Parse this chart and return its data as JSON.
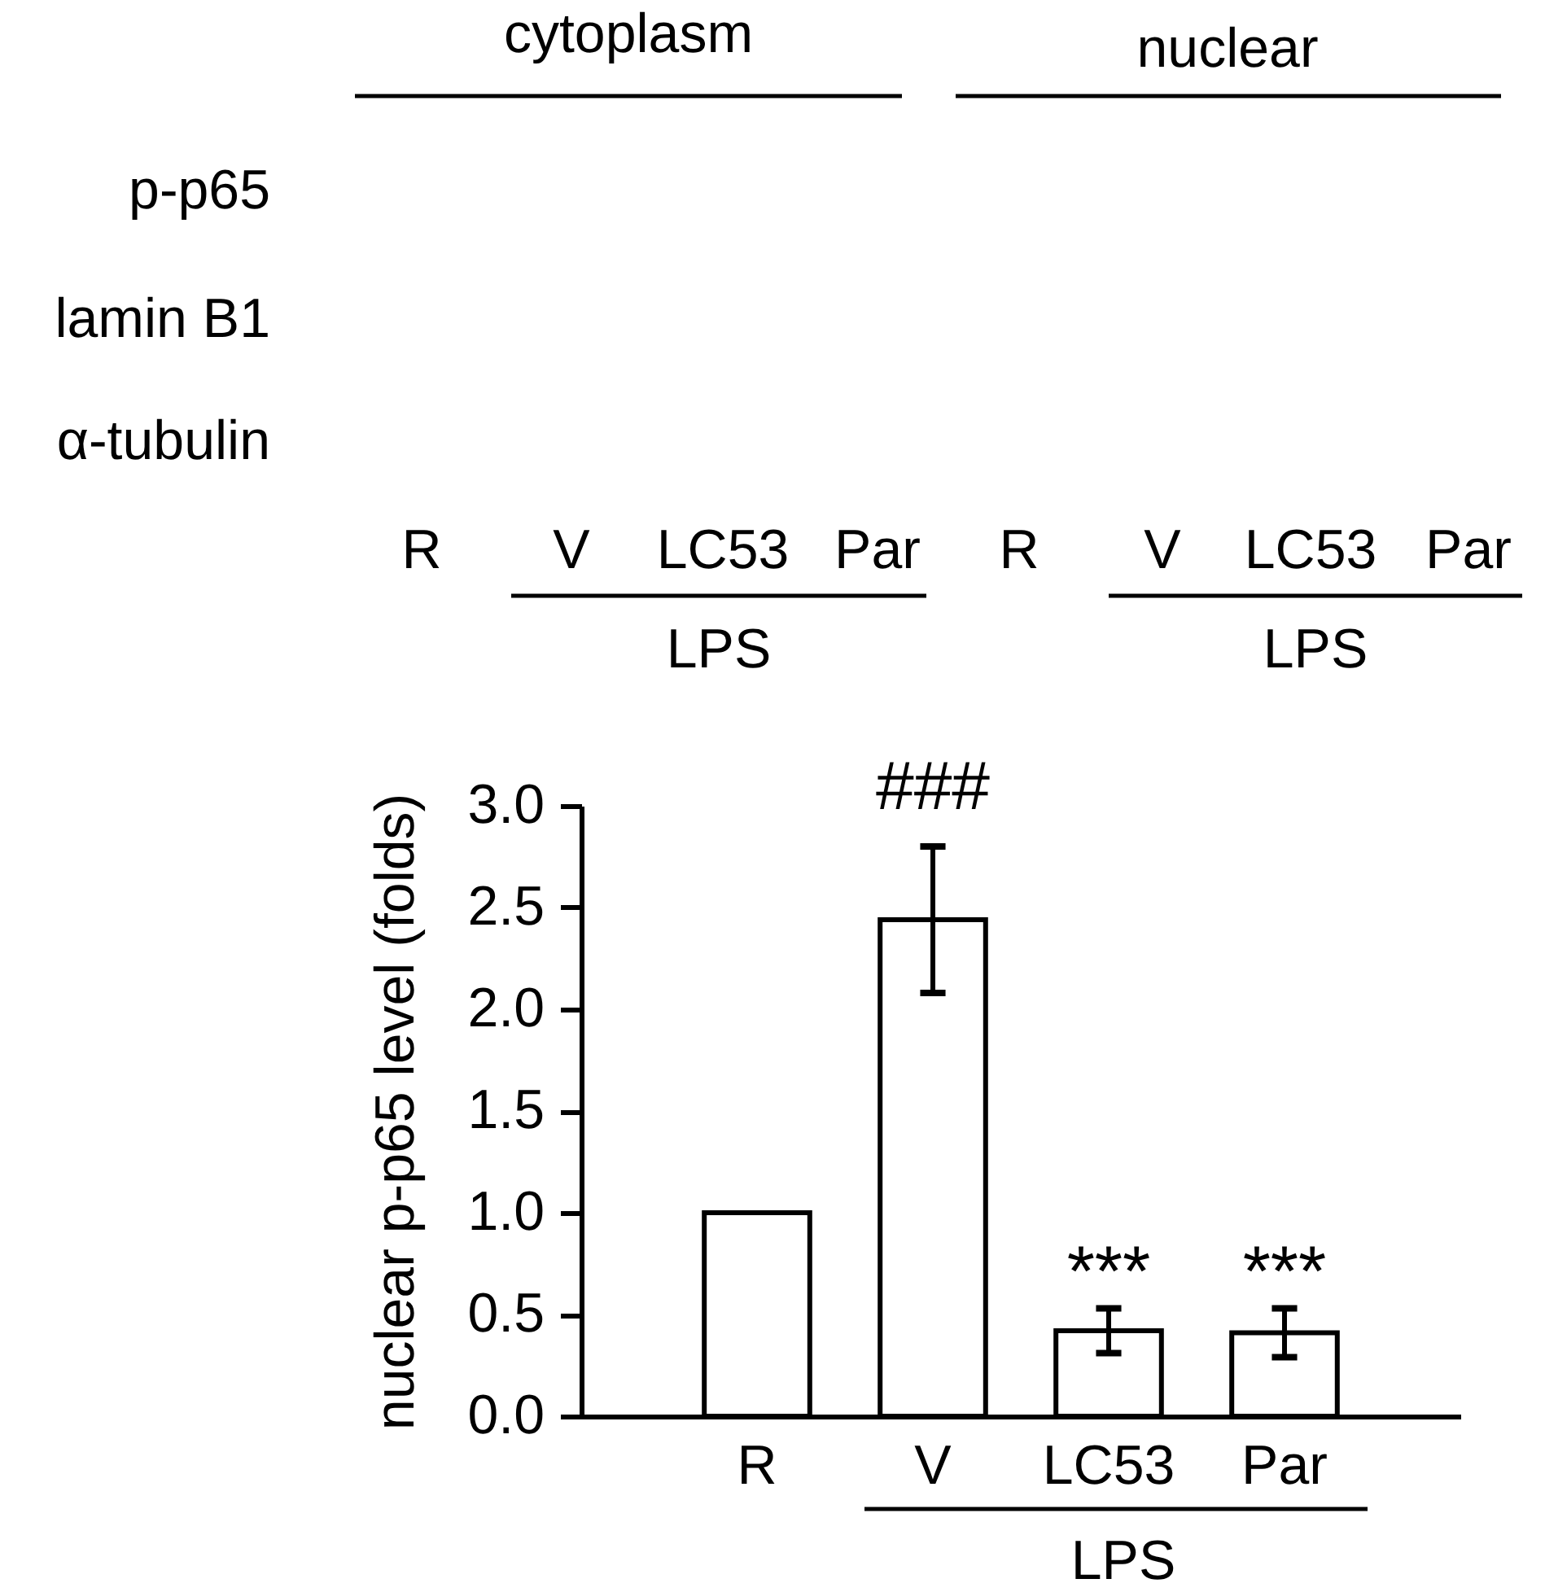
{
  "chart_data": [
    {
      "type": "other",
      "categories": [
        "R",
        "V",
        "LC53",
        "Par",
        "R",
        "V",
        "LC53",
        "Par"
      ],
      "annotations": [
        "cytoplasm",
        "nuclear",
        "p-p65",
        "lamin B1",
        "α-tubulin",
        "LPS",
        "LPS"
      ]
    },
    {
      "type": "bar",
      "categories": [
        "R",
        "V",
        "LC53",
        "Par"
      ],
      "values": [
        1.0,
        2.44,
        0.42,
        0.41
      ],
      "errors": [
        null,
        0.36,
        0.11,
        0.12
      ],
      "color": "#ffffff",
      "ylabel": "nuclear p-p65 level (folds)",
      "ylim": [
        0,
        3
      ],
      "yticks": [
        {
          "value": 0,
          "label": "0.0"
        },
        0.5,
        {
          "value": 1,
          "label": "1.0"
        },
        1.5,
        {
          "value": 2,
          "label": "2.0"
        },
        2.5,
        {
          "value": 3,
          "label": "3.0"
        }
      ],
      "annotations": [
        "###",
        "***",
        "***",
        "LPS"
      ]
    }
  ]
}
